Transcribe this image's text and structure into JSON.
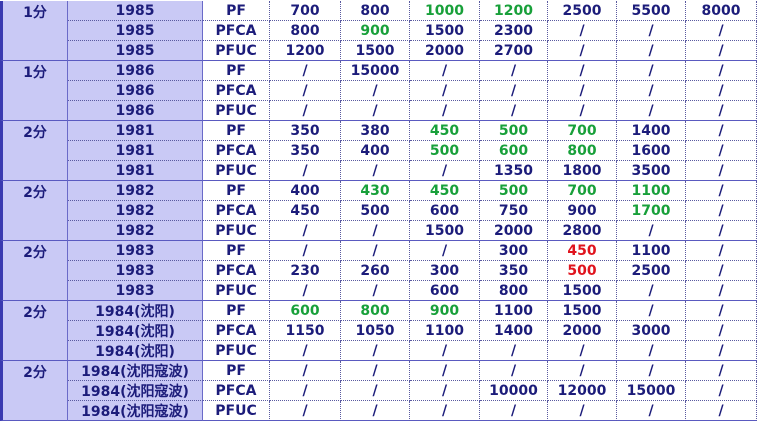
{
  "groups": [
    {
      "denomination": "1分",
      "rows": [
        {
          "year": "1985",
          "type": "PF",
          "prices": [
            "700",
            "800",
            {
              "text": "1000",
              "color": "green"
            },
            {
              "text": "1200",
              "color": "green"
            },
            "2500",
            "5500",
            "8000"
          ]
        },
        {
          "year": "1985",
          "type": "PFCA",
          "prices": [
            "800",
            {
              "text": "900",
              "color": "green"
            },
            "1500",
            "2300",
            "/",
            "/",
            "/"
          ]
        },
        {
          "year": "1985",
          "type": "PFUC",
          "prices": [
            "1200",
            "1500",
            "2000",
            "2700",
            "/",
            "/",
            "/"
          ]
        }
      ]
    },
    {
      "denomination": "1分",
      "rows": [
        {
          "year": "1986",
          "type": "PF",
          "prices": [
            "/",
            "15000",
            "/",
            "/",
            "/",
            "/",
            "/"
          ]
        },
        {
          "year": "1986",
          "type": "PFCA",
          "prices": [
            "/",
            "/",
            "/",
            "/",
            "/",
            "/",
            "/"
          ]
        },
        {
          "year": "1986",
          "type": "PFUC",
          "prices": [
            "/",
            "/",
            "/",
            "/",
            "/",
            "/",
            "/"
          ]
        }
      ]
    },
    {
      "denomination": "2分",
      "rows": [
        {
          "year": "1981",
          "type": "PF",
          "prices": [
            "350",
            "380",
            {
              "text": "450",
              "color": "green"
            },
            {
              "text": "500",
              "color": "green"
            },
            {
              "text": "700",
              "color": "green"
            },
            "1400",
            "/"
          ]
        },
        {
          "year": "1981",
          "type": "PFCA",
          "prices": [
            "350",
            "400",
            {
              "text": "500",
              "color": "green"
            },
            {
              "text": "600",
              "color": "green"
            },
            {
              "text": "800",
              "color": "green"
            },
            "1600",
            "/"
          ]
        },
        {
          "year": "1981",
          "type": "PFUC",
          "prices": [
            "/",
            "/",
            "/",
            "1350",
            "1800",
            "3500",
            "/"
          ]
        }
      ]
    },
    {
      "denomination": "2分",
      "rows": [
        {
          "year": "1982",
          "type": "PF",
          "prices": [
            "400",
            {
              "text": "430",
              "color": "green"
            },
            {
              "text": "450",
              "color": "green"
            },
            {
              "text": "500",
              "color": "green"
            },
            {
              "text": "700",
              "color": "green"
            },
            {
              "text": "1100",
              "color": "green"
            },
            "/"
          ]
        },
        {
          "year": "1982",
          "type": "PFCA",
          "prices": [
            "450",
            "500",
            "600",
            "750",
            "900",
            {
              "text": "1700",
              "color": "green"
            },
            "/"
          ]
        },
        {
          "year": "1982",
          "type": "PFUC",
          "prices": [
            "/",
            "/",
            "1500",
            "2000",
            "2800",
            "/",
            "/"
          ]
        }
      ]
    },
    {
      "denomination": "2分",
      "rows": [
        {
          "year": "1983",
          "type": "PF",
          "prices": [
            "/",
            "/",
            "/",
            "300",
            {
              "text": "450",
              "color": "red"
            },
            "1100",
            "/"
          ]
        },
        {
          "year": "1983",
          "type": "PFCA",
          "prices": [
            "230",
            "260",
            "300",
            "350",
            {
              "text": "500",
              "color": "red"
            },
            "2500",
            "/"
          ]
        },
        {
          "year": "1983",
          "type": "PFUC",
          "prices": [
            "/",
            "/",
            "600",
            "800",
            "1500",
            "/",
            "/"
          ]
        }
      ]
    },
    {
      "denomination": "2分",
      "rows": [
        {
          "year": "1984(沈阳)",
          "type": "PF",
          "prices": [
            {
              "text": "600",
              "color": "green"
            },
            {
              "text": "800",
              "color": "green"
            },
            {
              "text": "900",
              "color": "green"
            },
            "1100",
            "1500",
            "/",
            "/"
          ]
        },
        {
          "year": "1984(沈阳)",
          "type": "PFCA",
          "prices": [
            "1150",
            "1050",
            "1100",
            "1400",
            "2000",
            "3000",
            "/"
          ]
        },
        {
          "year": "1984(沈阳)",
          "type": "PFUC",
          "prices": [
            "/",
            "/",
            "/",
            "/",
            "/",
            "/",
            "/"
          ]
        }
      ]
    },
    {
      "denomination": "2分",
      "rows": [
        {
          "year": "1984(沈阳寇波)",
          "type": "PF",
          "prices": [
            "/",
            "/",
            "/",
            "/",
            "/",
            "/",
            "/"
          ]
        },
        {
          "year": "1984(沈阳寇波)",
          "type": "PFCA",
          "prices": [
            "/",
            "/",
            "/",
            "10000",
            "12000",
            "15000",
            "/"
          ]
        },
        {
          "year": "1984(沈阳寇波)",
          "type": "PFUC",
          "prices": [
            "/",
            "/",
            "/",
            "/",
            "/",
            "/",
            "/"
          ]
        }
      ]
    }
  ]
}
